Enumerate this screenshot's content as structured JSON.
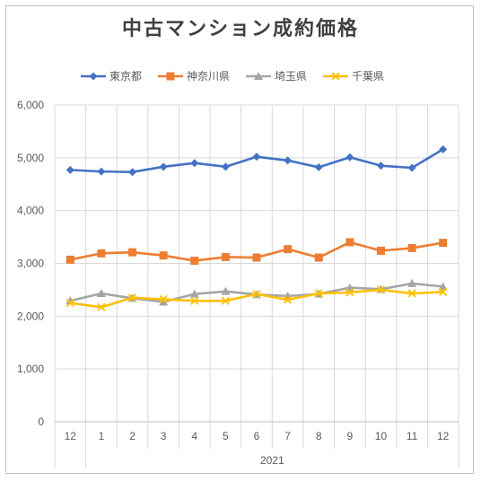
{
  "chart_data": {
    "type": "line",
    "title": "中古マンション成約価格",
    "xlabel": "",
    "ylabel": "",
    "categories": [
      "12",
      "1",
      "2",
      "3",
      "4",
      "5",
      "6",
      "7",
      "8",
      "9",
      "10",
      "11",
      "12"
    ],
    "year_label": "2021",
    "ylim": [
      0,
      6000
    ],
    "yticks": [
      "0",
      "1,000",
      "2,000",
      "3,000",
      "4,000",
      "5,000",
      "6,000"
    ],
    "legend_position": "top",
    "vertical_grid": true,
    "series": [
      {
        "name": "東京都",
        "color": "#4472C4",
        "marker": "diamond",
        "values": [
          4770,
          4740,
          4730,
          4830,
          4900,
          4830,
          5020,
          4950,
          4820,
          5010,
          4850,
          4810,
          5160
        ]
      },
      {
        "name": "神奈川県",
        "color": "#ED7D31",
        "marker": "square",
        "values": [
          3070,
          3190,
          3210,
          3150,
          3050,
          3120,
          3110,
          3270,
          3110,
          3400,
          3240,
          3290,
          3390
        ]
      },
      {
        "name": "埼玉県",
        "color": "#A5A5A5",
        "marker": "triangle",
        "values": [
          2290,
          2430,
          2340,
          2270,
          2420,
          2470,
          2410,
          2380,
          2420,
          2540,
          2510,
          2620,
          2560
        ]
      },
      {
        "name": "千葉県",
        "color": "#FFC000",
        "marker": "x",
        "values": [
          2250,
          2170,
          2350,
          2320,
          2290,
          2290,
          2420,
          2310,
          2430,
          2450,
          2500,
          2430,
          2460
        ]
      }
    ]
  }
}
